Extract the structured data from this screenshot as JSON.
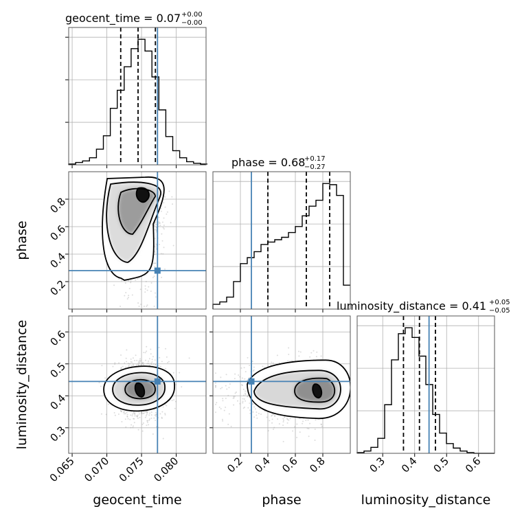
{
  "chart_data": {
    "type": "corner",
    "parameters": [
      "geocent_time",
      "phase",
      "luminosity_distance"
    ],
    "truths": {
      "geocent_time": 0.0773,
      "phase": 0.28,
      "luminosity_distance": 0.445
    },
    "titles": [
      {
        "param": "geocent_time",
        "main": "geocent_time = 0.07",
        "sup": "+0.00",
        "sub": "−0.00"
      },
      {
        "param": "phase",
        "main": "phase = 0.68",
        "sup": "+0.17",
        "sub": "−0.27"
      },
      {
        "param": "luminosity_distance",
        "main": "luminosity_distance = 0.41",
        "sup": "+0.05",
        "sub": "−0.05"
      }
    ],
    "axis_labels": {
      "x": [
        "geocent_time",
        "phase",
        "luminosity_distance"
      ],
      "y": [
        "phase",
        "luminosity_distance"
      ]
    },
    "ranges": {
      "geocent_time": [
        0.0645,
        0.0843
      ],
      "phase": [
        0.0,
        1.0
      ],
      "luminosity_distance": [
        0.22,
        0.65
      ]
    },
    "ticks": {
      "geocent_time": [
        "0.065",
        "0.070",
        "0.075",
        "0.080"
      ],
      "phase": [
        "0.2",
        "0.4",
        "0.6",
        "0.8"
      ],
      "luminosity_distance": [
        "0.3",
        "0.4",
        "0.5",
        "0.6"
      ]
    },
    "quantiles": {
      "geocent_time": [
        0.072,
        0.0745,
        0.077
      ],
      "phase": [
        0.4,
        0.68,
        0.85
      ],
      "luminosity_distance": [
        0.365,
        0.415,
        0.465
      ]
    },
    "histograms": {
      "geocent_time": {
        "edges_start": 0.0645,
        "bin_width": 0.001,
        "counts": [
          1,
          3,
          5,
          9,
          20,
          37,
          72,
          95,
          125,
          148,
          160,
          145,
          112,
          70,
          36,
          18,
          9,
          4,
          2,
          1
        ]
      },
      "phase": {
        "edges_start": 0.0,
        "bin_width": 0.05,
        "counts": [
          4,
          6,
          10,
          23,
          38,
          43,
          48,
          54,
          56,
          58,
          60,
          64,
          69,
          78,
          86,
          91,
          105,
          104,
          95,
          20
        ]
      },
      "luminosity_distance": {
        "edges_start": 0.22,
        "bin_width": 0.0215,
        "counts": [
          1,
          3,
          8,
          20,
          65,
          125,
          160,
          168,
          155,
          130,
          92,
          52,
          27,
          13,
          7,
          3,
          1,
          0,
          0,
          0
        ]
      }
    },
    "density_peaks": {
      "phase_vs_geocent_time": {
        "x": 0.0755,
        "y": 0.82
      },
      "luminosity_distance_vs_geocent_time": {
        "x": 0.075,
        "y": 0.42
      },
      "luminosity_distance_vs_phase": {
        "x": 0.77,
        "y": 0.415
      }
    },
    "grid": true
  }
}
